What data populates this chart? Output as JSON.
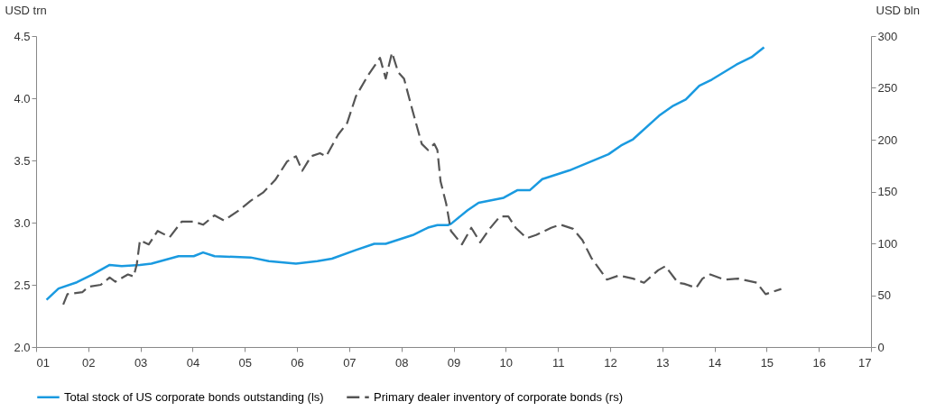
{
  "chart_data": {
    "type": "line",
    "ylabel": "USD trn",
    "y2label": "USD bln",
    "xlim": [
      1,
      17
    ],
    "xticks": [
      {
        "value": 1,
        "label": "01"
      },
      {
        "value": 2,
        "label": "02"
      },
      {
        "value": 3,
        "label": "03"
      },
      {
        "value": 4,
        "label": "04"
      },
      {
        "value": 5,
        "label": "05"
      },
      {
        "value": 6,
        "label": "06"
      },
      {
        "value": 7,
        "label": "07"
      },
      {
        "value": 8,
        "label": "08"
      },
      {
        "value": 9,
        "label": "09"
      },
      {
        "value": 10,
        "label": "10"
      },
      {
        "value": 11,
        "label": "11"
      },
      {
        "value": 12,
        "label": "12"
      },
      {
        "value": 13,
        "label": "13"
      },
      {
        "value": 14,
        "label": "14"
      },
      {
        "value": 15,
        "label": "15"
      },
      {
        "value": 16,
        "label": "16"
      },
      {
        "value": 17,
        "label": "17"
      }
    ],
    "ylim": [
      2.0,
      4.5
    ],
    "yticks": [
      {
        "value": 2.0,
        "label": "2.0"
      },
      {
        "value": 2.5,
        "label": "2.5"
      },
      {
        "value": 3.0,
        "label": "3.0"
      },
      {
        "value": 3.5,
        "label": "3.5"
      },
      {
        "value": 4.0,
        "label": "4.0"
      },
      {
        "value": 4.5,
        "label": "4.5"
      }
    ],
    "y2lim": [
      0,
      300
    ],
    "y2ticks": [
      0,
      50,
      100,
      150,
      200,
      250,
      300
    ],
    "grid": false,
    "legend": "bottom",
    "series": [
      {
        "name": "Total stock of US corporate bonds outstanding (ls)",
        "color": "#1a9ae0",
        "line_style": "solid",
        "axis": "y",
        "x": [
          1.2,
          1.43,
          1.78,
          2.07,
          2.41,
          2.64,
          2.99,
          3.21,
          3.73,
          4.02,
          4.2,
          4.42,
          5.11,
          5.46,
          5.98,
          6.39,
          6.67,
          7.13,
          7.48,
          7.7,
          8.22,
          8.51,
          8.69,
          8.89,
          8.95,
          9.27,
          9.48,
          9.96,
          10.22,
          10.46,
          10.7,
          11.22,
          11.97,
          12.21,
          12.44,
          12.94,
          13.21,
          13.45,
          13.71,
          13.95,
          14.42,
          14.71,
          14.95
        ],
        "values": [
          2.38,
          2.47,
          2.52,
          2.58,
          2.66,
          2.65,
          2.66,
          2.67,
          2.73,
          2.73,
          2.76,
          2.73,
          2.72,
          2.69,
          2.67,
          2.69,
          2.71,
          2.78,
          2.83,
          2.83,
          2.9,
          2.96,
          2.98,
          2.98,
          2.99,
          3.1,
          3.16,
          3.2,
          3.26,
          3.26,
          3.35,
          3.42,
          3.55,
          3.62,
          3.67,
          3.86,
          3.94,
          3.99,
          4.1,
          4.15,
          4.27,
          4.33,
          4.41
        ]
      },
      {
        "name": "Primary dealer inventory of corporate bonds (rs)",
        "color": "#555555",
        "line_style": "dashed",
        "axis": "y2",
        "x": [
          1.52,
          1.6,
          1.89,
          2.0,
          2.24,
          2.41,
          2.52,
          2.76,
          2.87,
          2.93,
          2.99,
          3.16,
          3.33,
          3.56,
          3.79,
          4.02,
          4.2,
          4.42,
          4.6,
          4.89,
          5.11,
          5.35,
          5.58,
          5.81,
          5.98,
          6.1,
          6.27,
          6.44,
          6.56,
          6.79,
          6.96,
          7.13,
          7.36,
          7.59,
          7.7,
          7.82,
          7.94,
          8.05,
          8.22,
          8.39,
          8.51,
          8.63,
          8.69,
          8.75,
          8.86,
          8.95,
          9.16,
          9.34,
          9.51,
          9.69,
          9.89,
          10.05,
          10.19,
          10.4,
          10.58,
          10.87,
          11.05,
          11.29,
          11.47,
          11.64,
          11.94,
          12.17,
          12.44,
          12.65,
          12.92,
          13.06,
          13.3,
          13.42,
          13.65,
          13.77,
          13.92,
          14.19,
          14.45,
          14.81,
          14.98,
          15.28
        ],
        "values": [
          41,
          51,
          53,
          58,
          60,
          67,
          63,
          70,
          68,
          80,
          103,
          99,
          112,
          106,
          121,
          121,
          118,
          127,
          122,
          132,
          141,
          149,
          161,
          179,
          184,
          170,
          184,
          187,
          184,
          205,
          216,
          242,
          262,
          279,
          259,
          284,
          265,
          259,
          227,
          196,
          190,
          196,
          190,
          160,
          138,
          112,
          99,
          115,
          101,
          114,
          126,
          126,
          115,
          105,
          108,
          115,
          118,
          114,
          103,
          86,
          65,
          69,
          66,
          62,
          74,
          78,
          62,
          61,
          57,
          66,
          70,
          65,
          66,
          62,
          51,
          56
        ]
      }
    ]
  }
}
